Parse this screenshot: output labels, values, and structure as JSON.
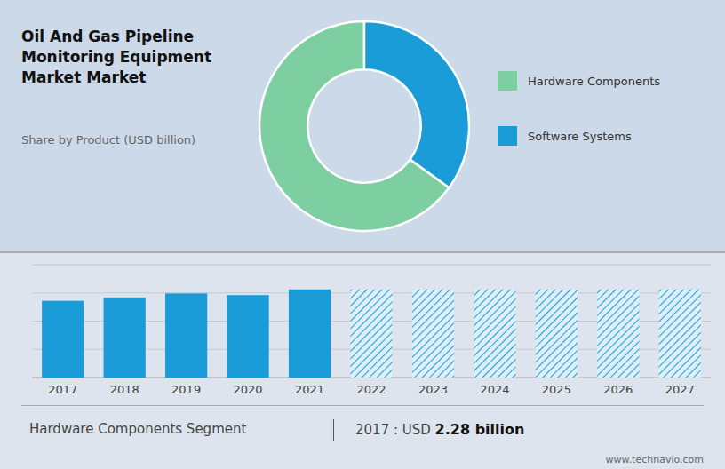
{
  "chart_data": [
    {
      "type": "pie",
      "title": "Oil And Gas Pipeline Monitoring Equipment Market Market",
      "subtitle": "Share by Product (USD billion)",
      "categories": [
        "Hardware Components",
        "Software Systems"
      ],
      "values": [
        65,
        35
      ],
      "colors": [
        "#7dcea0",
        "#1a9cd8"
      ],
      "legend": "right"
    },
    {
      "type": "bar",
      "categories": [
        "2017",
        "2018",
        "2019",
        "2020",
        "2021",
        "2022",
        "2023",
        "2024",
        "2025",
        "2026",
        "2027"
      ],
      "values": [
        2.28,
        2.38,
        2.5,
        2.45,
        2.62,
        2.62,
        2.62,
        2.62,
        2.62,
        2.62,
        2.62
      ],
      "color": "#1a9cd8",
      "colors": [
        "#1a9cd8",
        "#1a9cd8",
        "#1a9cd8",
        "#1a9cd8",
        "#1a9cd8",
        "#ddeef8",
        "#ddeef8",
        "#ddeef8",
        "#ddeef8",
        "#ddeef8",
        "#ddeef8"
      ],
      "ylim": [
        0,
        3.3536
      ],
      "yticks": [
        0,
        0.8384,
        1.6768,
        2.5152,
        3.3536
      ],
      "grid": true,
      "tick_labels": "x",
      "annotations": [
        "Hardware Components Segment",
        "2017 : USD ",
        "2.28 billion",
        "www.technavio.com"
      ]
    }
  ]
}
